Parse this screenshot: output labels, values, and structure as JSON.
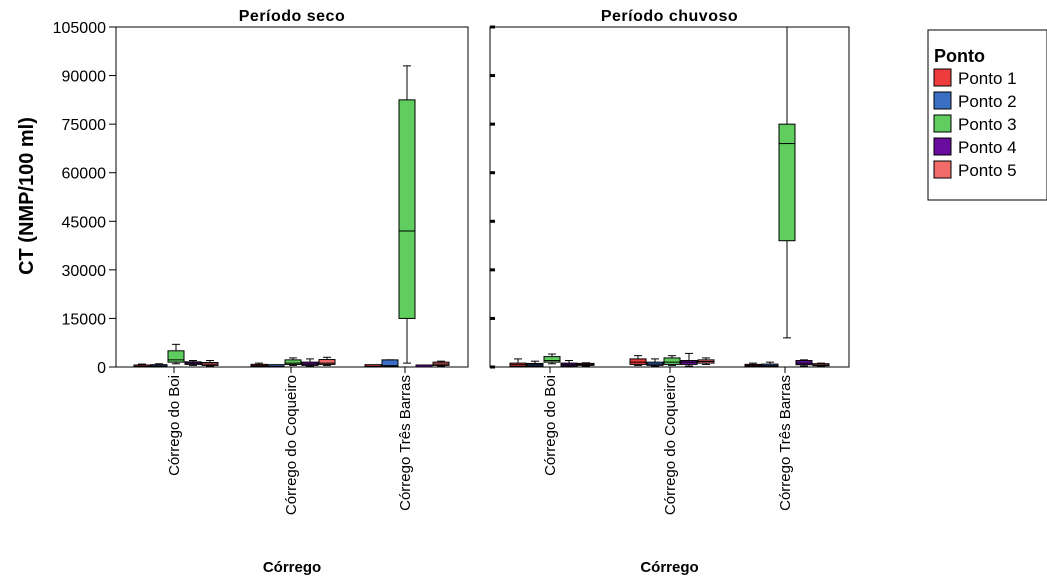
{
  "chart_data": {
    "type": "boxplot",
    "ylabel": "CT (NMP/100 ml)",
    "xlabel": "Córrego",
    "ylim": [
      0,
      105000
    ],
    "yticks": [
      "0",
      "15000",
      "30000",
      "45000",
      "60000",
      "75000",
      "90000",
      "105000"
    ],
    "ytick_values": [
      0,
      15000,
      30000,
      45000,
      60000,
      75000,
      90000,
      105000
    ],
    "categories": [
      "Córrego do Boi",
      "Córrego do Coqueiro",
      "Córrego Três Barras"
    ],
    "legend": {
      "title": "Ponto",
      "placement": "right",
      "items": [
        {
          "label": "Ponto 1",
          "color": "#ee3b3b"
        },
        {
          "label": "Ponto 2",
          "color": "#3a6fc4"
        },
        {
          "label": "Ponto 3",
          "color": "#5fce5f"
        },
        {
          "label": "Ponto 4",
          "color": "#6a0d9e"
        },
        {
          "label": "Ponto 5",
          "color": "#f26b6b"
        }
      ]
    },
    "panels": [
      {
        "title": "Período seco",
        "boxes": [
          [
            {
              "min": 0,
              "q1": 0,
              "median": 200,
              "q3": 600,
              "max": 900
            },
            {
              "min": 0,
              "q1": 100,
              "median": 300,
              "q3": 700,
              "max": 1000
            },
            {
              "min": 1000,
              "q1": 1500,
              "median": 2200,
              "q3": 5000,
              "max": 7000
            },
            {
              "min": 500,
              "q1": 800,
              "median": 1200,
              "q3": 1600,
              "max": 2000
            },
            {
              "min": 300,
              "q1": 500,
              "median": 900,
              "q3": 1400,
              "max": 2000
            }
          ],
          [
            {
              "min": 100,
              "q1": 200,
              "median": 400,
              "q3": 800,
              "max": 1200
            },
            {
              "min": 0,
              "q1": 100,
              "median": 200,
              "q3": 400,
              "max": 600
            },
            {
              "min": 500,
              "q1": 800,
              "median": 1200,
              "q3": 2200,
              "max": 2800
            },
            {
              "min": 200,
              "q1": 500,
              "median": 900,
              "q3": 1500,
              "max": 2500
            },
            {
              "min": 500,
              "q1": 800,
              "median": 1200,
              "q3": 2300,
              "max": 3000
            }
          ],
          [
            {
              "min": 0,
              "q1": 100,
              "median": 200,
              "q3": 400,
              "max": 600
            },
            {
              "min": 0,
              "q1": 200,
              "median": 400,
              "q3": 2200,
              "max": 2200
            },
            {
              "min": 1200,
              "q1": 15000,
              "median": 42000,
              "q3": 82500,
              "max": 93000
            },
            {
              "min": 0,
              "q1": 0,
              "median": 0,
              "q3": 0,
              "max": 0
            },
            {
              "min": 300,
              "q1": 500,
              "median": 900,
              "q3": 1500,
              "max": 1800
            }
          ]
        ]
      },
      {
        "title": "Período chuvoso",
        "boxes": [
          [
            {
              "min": 100,
              "q1": 200,
              "median": 700,
              "q3": 1200,
              "max": 2500
            },
            {
              "min": 200,
              "q1": 300,
              "median": 700,
              "q3": 1100,
              "max": 1800
            },
            {
              "min": 1000,
              "q1": 1500,
              "median": 2000,
              "q3": 3200,
              "max": 4000
            },
            {
              "min": 100,
              "q1": 300,
              "median": 700,
              "q3": 1200,
              "max": 2000
            },
            {
              "min": 300,
              "q1": 500,
              "median": 800,
              "q3": 1100,
              "max": 1300
            }
          ],
          [
            {
              "min": 500,
              "q1": 800,
              "median": 1500,
              "q3": 2500,
              "max": 3500
            },
            {
              "min": 200,
              "q1": 500,
              "median": 900,
              "q3": 1500,
              "max": 2500
            },
            {
              "min": 500,
              "q1": 800,
              "median": 1500,
              "q3": 2800,
              "max": 3500
            },
            {
              "min": 300,
              "q1": 800,
              "median": 1500,
              "q3": 2000,
              "max": 4200
            },
            {
              "min": 800,
              "q1": 1200,
              "median": 1700,
              "q3": 2200,
              "max": 2800
            }
          ],
          [
            {
              "min": 100,
              "q1": 200,
              "median": 500,
              "q3": 800,
              "max": 1200
            },
            {
              "min": 100,
              "q1": 200,
              "median": 400,
              "q3": 900,
              "max": 1500
            },
            {
              "min": 9000,
              "q1": 39000,
              "median": 69000,
              "q3": 75000,
              "max": 105000
            },
            {
              "min": 300,
              "q1": 700,
              "median": 1200,
              "q3": 2000,
              "max": 2200
            },
            {
              "min": 200,
              "q1": 400,
              "median": 600,
              "q3": 900,
              "max": 1200
            }
          ]
        ]
      }
    ]
  }
}
